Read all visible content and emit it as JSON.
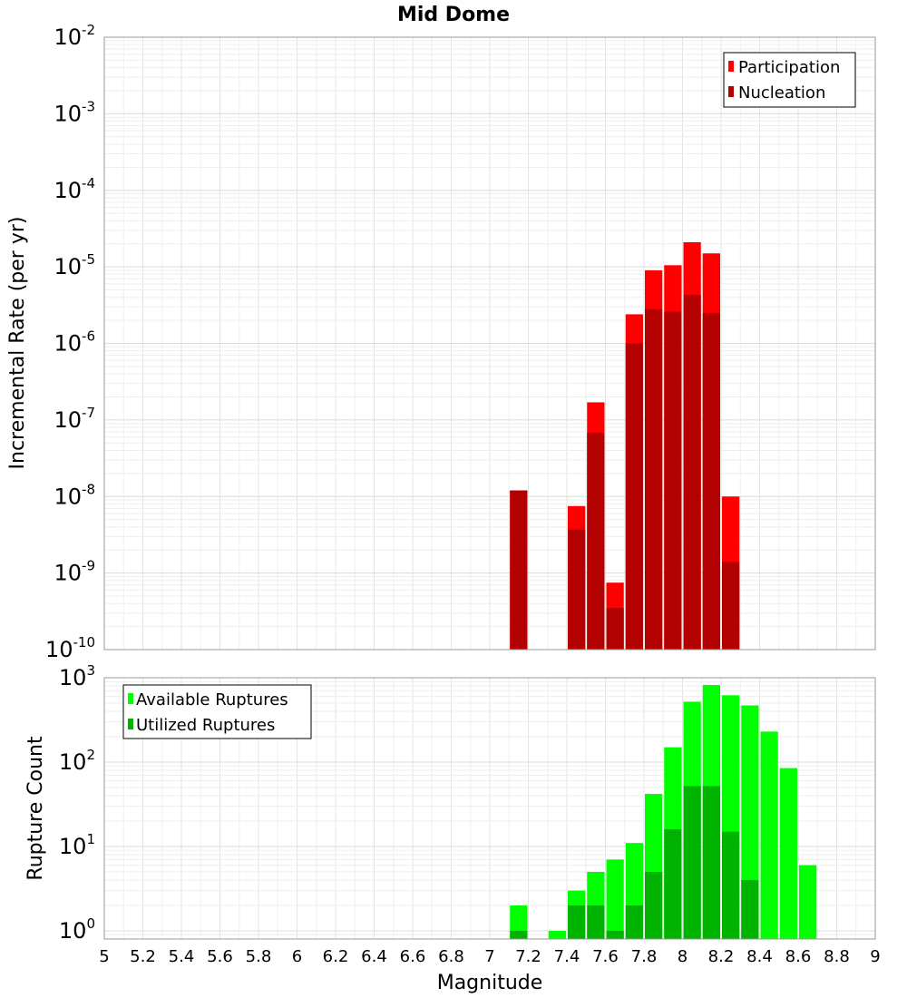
{
  "chart_data": [
    {
      "type": "bar",
      "title": "Mid Dome",
      "xlabel": "",
      "ylabel": "Incremental Rate (per yr)",
      "y_scale": "log",
      "xlim": [
        5,
        9
      ],
      "ylim": [
        1e-10,
        0.01
      ],
      "yticks": [
        {
          "base": "10",
          "exp": "-10",
          "value": 1e-10
        },
        {
          "base": "10",
          "exp": "-9",
          "value": 1e-09
        },
        {
          "base": "10",
          "exp": "-8",
          "value": 1e-08
        },
        {
          "base": "10",
          "exp": "-7",
          "value": 1e-07
        },
        {
          "base": "10",
          "exp": "-6",
          "value": 1e-06
        },
        {
          "base": "10",
          "exp": "-5",
          "value": 1e-05
        },
        {
          "base": "10",
          "exp": "-4",
          "value": 0.0001
        },
        {
          "base": "10",
          "exp": "-3",
          "value": 0.001
        },
        {
          "base": "10",
          "exp": "-2",
          "value": 0.01
        }
      ],
      "grid": true,
      "legend_position": "top-right",
      "bar_width": 0.1,
      "series": [
        {
          "name": "Participation",
          "color": "#ff0000",
          "x": [
            7.15,
            7.45,
            7.55,
            7.65,
            7.75,
            7.85,
            7.95,
            8.05,
            8.15,
            8.25
          ],
          "values": [
            1.2e-08,
            7.5e-09,
            1.7e-07,
            7.5e-10,
            2.4e-06,
            9e-06,
            1.05e-05,
            2.1e-05,
            1.5e-05,
            1e-08
          ]
        },
        {
          "name": "Nucleation",
          "color": "#b30000",
          "x": [
            7.15,
            7.45,
            7.55,
            7.65,
            7.75,
            7.85,
            7.95,
            8.05,
            8.15,
            8.25
          ],
          "values": [
            1.2e-08,
            3.7e-09,
            6.8e-08,
            3.5e-10,
            1e-06,
            2.8e-06,
            2.6e-06,
            4.3e-06,
            2.5e-06,
            1.4e-09
          ]
        }
      ]
    },
    {
      "type": "bar",
      "title": "",
      "xlabel": "Magnitude",
      "ylabel": "Rupture Count",
      "y_scale": "log",
      "xlim": [
        5,
        9
      ],
      "ylim": [
        0.8,
        1000
      ],
      "xticks": [
        "5",
        "5.2",
        "5.4",
        "5.6",
        "5.8",
        "6",
        "6.2",
        "6.4",
        "6.6",
        "6.8",
        "7",
        "7.2",
        "7.4",
        "7.6",
        "7.8",
        "8",
        "8.2",
        "8.4",
        "8.6",
        "8.8",
        "9"
      ],
      "yticks": [
        {
          "base": "10",
          "exp": "0",
          "value": 1
        },
        {
          "base": "10",
          "exp": "1",
          "value": 10
        },
        {
          "base": "10",
          "exp": "2",
          "value": 100
        },
        {
          "base": "10",
          "exp": "3",
          "value": 1000
        }
      ],
      "grid": true,
      "legend_position": "top-left",
      "bar_width": 0.1,
      "series": [
        {
          "name": "Available Ruptures",
          "color": "#00ff00",
          "x": [
            7.15,
            7.35,
            7.45,
            7.55,
            7.65,
            7.75,
            7.85,
            7.95,
            8.05,
            8.15,
            8.25,
            8.35,
            8.45,
            8.55,
            8.65
          ],
          "values": [
            2,
            1,
            3,
            5,
            7,
            11,
            42,
            150,
            520,
            820,
            620,
            470,
            230,
            85,
            6
          ]
        },
        {
          "name": "Utilized Ruptures",
          "color": "#00b300",
          "x": [
            7.15,
            7.45,
            7.55,
            7.65,
            7.75,
            7.85,
            7.95,
            8.05,
            8.15,
            8.25,
            8.35
          ],
          "values": [
            1,
            2,
            2,
            1,
            2,
            5,
            16,
            52,
            52,
            15,
            4
          ]
        }
      ]
    }
  ]
}
